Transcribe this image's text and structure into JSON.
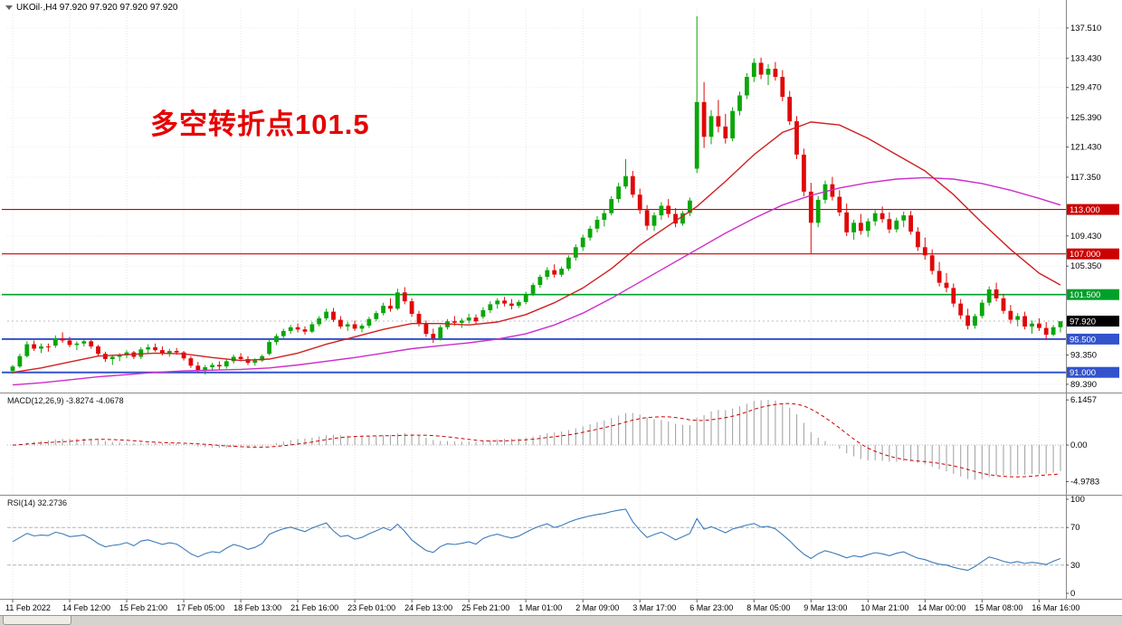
{
  "header": {
    "symbol_ohlc": "UKOil·,H4 97.920 97.920 97.920 97.920"
  },
  "annotation": {
    "text": "多空转折点101.5",
    "color": "#e60000"
  },
  "panels": {
    "macd_label": "MACD(12,26,9) -3.8274 -4.0678",
    "rsi_label": "RSI(14) 32.2736"
  },
  "colors": {
    "up": "#0aa60a",
    "down": "#e00707",
    "ma_fast": "#d02020",
    "ma_slow": "#cc2dcc",
    "macd_hist": "#a6a6a6",
    "macd_signal": "#cc0000",
    "rsi": "#3c7ab8"
  },
  "chart_data": {
    "type": "candlestick",
    "symbol": "UKOil",
    "timeframe": "H4",
    "current_price": 97.92,
    "current_price_label": "97.920",
    "price_ticks": [
      "137.510",
      "133.430",
      "129.470",
      "125.390",
      "121.430",
      "117.350",
      "109.430",
      "105.350",
      "93.350",
      "89.390"
    ],
    "horizontal_lines": [
      {
        "value": 113.0,
        "label": "113.000",
        "color": "#cc0000",
        "width": 1.2
      },
      {
        "value": 107.0,
        "label": "107.000",
        "color": "#cc0000",
        "width": 1.2
      },
      {
        "value": 101.5,
        "label": "101.500",
        "color": "#00a02c",
        "width": 1.6
      },
      {
        "value": 95.5,
        "label": "95.500",
        "color": "#3352cc",
        "width": 2
      },
      {
        "value": 91.0,
        "label": "91.000",
        "color": "#3352cc",
        "width": 2
      }
    ],
    "x_labels": [
      "11 Feb 2022",
      "14 Feb 12:00",
      "15 Feb 21:00",
      "17 Feb 05:00",
      "18 Feb 13:00",
      "21 Feb 16:00",
      "23 Feb 01:00",
      "24 Feb 13:00",
      "25 Feb 21:00",
      "1 Mar 01:00",
      "2 Mar 09:00",
      "3 Mar 17:00",
      "6 Mar 23:00",
      "8 Mar 05:00",
      "9 Mar 13:00",
      "10 Mar 21:00",
      "14 Mar 00:00",
      "15 Mar 08:00",
      "16 Mar 16:00"
    ],
    "candles_per_label": 8,
    "candles": [
      [
        91.2,
        92.0,
        90.8,
        91.8
      ],
      [
        91.8,
        93.5,
        91.6,
        93.2
      ],
      [
        93.2,
        95.2,
        93.0,
        94.8
      ],
      [
        94.8,
        95.3,
        93.9,
        94.2
      ],
      [
        94.2,
        94.9,
        93.6,
        94.5
      ],
      [
        94.5,
        94.9,
        93.8,
        94.4
      ],
      [
        94.6,
        96.0,
        94.3,
        95.6
      ],
      [
        95.6,
        96.4,
        95.0,
        95.3
      ],
      [
        95.3,
        95.8,
        94.4,
        94.7
      ],
      [
        94.7,
        95.2,
        94.0,
        94.9
      ],
      [
        94.9,
        95.5,
        94.5,
        95.2
      ],
      [
        95.2,
        95.4,
        94.2,
        94.5
      ],
      [
        94.5,
        94.7,
        93.2,
        93.5
      ],
      [
        93.5,
        93.8,
        92.4,
        92.8
      ],
      [
        92.8,
        93.4,
        92.0,
        93.1
      ],
      [
        93.1,
        93.6,
        92.5,
        93.3
      ],
      [
        93.3,
        94.0,
        92.9,
        93.7
      ],
      [
        93.7,
        93.9,
        92.8,
        93.1
      ],
      [
        93.1,
        94.4,
        92.8,
        94.1
      ],
      [
        94.1,
        94.8,
        93.6,
        94.4
      ],
      [
        94.4,
        94.9,
        93.8,
        94.0
      ],
      [
        94.0,
        94.5,
        93.3,
        93.6
      ],
      [
        93.6,
        94.2,
        93.1,
        93.9
      ],
      [
        93.9,
        94.3,
        93.4,
        93.7
      ],
      [
        93.7,
        93.9,
        92.6,
        92.9
      ],
      [
        92.9,
        93.2,
        91.6,
        91.9
      ],
      [
        91.9,
        92.4,
        90.9,
        91.2
      ],
      [
        91.2,
        92.0,
        90.7,
        91.7
      ],
      [
        91.7,
        92.3,
        91.2,
        92.0
      ],
      [
        92.0,
        92.5,
        91.4,
        91.8
      ],
      [
        91.8,
        92.8,
        91.5,
        92.5
      ],
      [
        92.5,
        93.4,
        92.2,
        93.1
      ],
      [
        93.1,
        93.6,
        92.5,
        92.8
      ],
      [
        92.8,
        93.2,
        92.0,
        92.3
      ],
      [
        92.3,
        92.9,
        91.9,
        92.6
      ],
      [
        92.6,
        93.4,
        92.4,
        93.2
      ],
      [
        93.5,
        95.4,
        93.3,
        95.1
      ],
      [
        95.1,
        96.2,
        94.7,
        95.9
      ],
      [
        95.9,
        96.9,
        95.5,
        96.6
      ],
      [
        96.6,
        97.4,
        96.2,
        97.1
      ],
      [
        97.1,
        97.6,
        96.4,
        96.8
      ],
      [
        96.8,
        97.2,
        96.1,
        96.5
      ],
      [
        96.5,
        97.8,
        96.3,
        97.5
      ],
      [
        97.5,
        98.6,
        97.2,
        98.3
      ],
      [
        98.3,
        99.6,
        98.0,
        99.2
      ],
      [
        99.2,
        99.7,
        97.8,
        98.1
      ],
      [
        98.1,
        98.6,
        96.9,
        97.2
      ],
      [
        97.2,
        97.8,
        96.6,
        97.5
      ],
      [
        97.5,
        98.0,
        96.6,
        96.9
      ],
      [
        96.9,
        97.6,
        96.4,
        97.3
      ],
      [
        97.3,
        98.5,
        97.0,
        98.2
      ],
      [
        98.2,
        99.3,
        97.9,
        99.0
      ],
      [
        99.0,
        100.4,
        98.7,
        100.0
      ],
      [
        100.0,
        101.0,
        99.2,
        99.6
      ],
      [
        99.6,
        102.3,
        99.4,
        101.8
      ],
      [
        101.8,
        102.5,
        100.2,
        100.6
      ],
      [
        100.6,
        101.0,
        98.5,
        98.9
      ],
      [
        98.9,
        99.3,
        97.2,
        97.6
      ],
      [
        97.6,
        98.0,
        95.8,
        96.2
      ],
      [
        96.2,
        96.9,
        95.0,
        95.6
      ],
      [
        95.6,
        97.4,
        95.3,
        97.1
      ],
      [
        97.1,
        98.2,
        96.8,
        97.9
      ],
      [
        97.9,
        98.6,
        97.3,
        97.7
      ],
      [
        97.7,
        98.3,
        97.0,
        98.0
      ],
      [
        98.0,
        98.9,
        97.6,
        98.4
      ],
      [
        98.4,
        98.8,
        97.5,
        97.9
      ],
      [
        98.5,
        99.8,
        98.2,
        99.4
      ],
      [
        99.4,
        100.6,
        99.0,
        100.2
      ],
      [
        100.2,
        101.0,
        99.6,
        100.7
      ],
      [
        100.7,
        101.2,
        99.9,
        100.3
      ],
      [
        100.3,
        100.9,
        99.5,
        100.0
      ],
      [
        100.0,
        100.8,
        99.7,
        100.5
      ],
      [
        100.5,
        101.9,
        100.2,
        101.6
      ],
      [
        101.6,
        103.1,
        101.3,
        102.8
      ],
      [
        102.8,
        104.2,
        102.4,
        103.9
      ],
      [
        103.9,
        105.2,
        103.5,
        104.8
      ],
      [
        104.8,
        105.6,
        103.8,
        104.2
      ],
      [
        104.2,
        105.3,
        103.9,
        105.0
      ],
      [
        105.0,
        106.8,
        104.7,
        106.5
      ],
      [
        106.5,
        108.3,
        106.1,
        107.9
      ],
      [
        107.9,
        109.6,
        107.4,
        109.2
      ],
      [
        109.2,
        110.8,
        108.8,
        110.4
      ],
      [
        110.4,
        112.1,
        109.9,
        111.6
      ],
      [
        111.6,
        113.0,
        110.7,
        112.5
      ],
      [
        112.5,
        114.8,
        112.2,
        114.4
      ],
      [
        114.4,
        116.6,
        113.9,
        116.1
      ],
      [
        116.1,
        119.8,
        115.8,
        117.5
      ],
      [
        117.5,
        118.2,
        114.6,
        115.0
      ],
      [
        115.0,
        115.8,
        112.4,
        112.9
      ],
      [
        112.9,
        113.6,
        110.2,
        110.8
      ],
      [
        110.8,
        112.6,
        110.1,
        112.2
      ],
      [
        112.2,
        114.0,
        111.6,
        113.5
      ],
      [
        113.5,
        114.4,
        111.9,
        112.4
      ],
      [
        112.4,
        113.2,
        110.6,
        111.1
      ],
      [
        111.1,
        112.8,
        110.8,
        112.5
      ],
      [
        112.5,
        114.6,
        112.1,
        114.2
      ],
      [
        118.5,
        139.1,
        117.9,
        127.5
      ],
      [
        127.5,
        130.2,
        121.3,
        122.8
      ],
      [
        122.8,
        126.4,
        121.8,
        125.6
      ],
      [
        125.6,
        127.8,
        123.4,
        124.2
      ],
      [
        124.2,
        125.9,
        121.9,
        122.6
      ],
      [
        122.6,
        126.8,
        122.2,
        126.3
      ],
      [
        126.3,
        128.9,
        125.7,
        128.4
      ],
      [
        128.4,
        131.4,
        127.9,
        130.9
      ],
      [
        130.9,
        133.4,
        130.2,
        132.8
      ],
      [
        132.8,
        133.5,
        130.6,
        131.2
      ],
      [
        131.2,
        132.6,
        129.8,
        132.0
      ],
      [
        132.0,
        132.9,
        130.4,
        130.9
      ],
      [
        130.9,
        131.8,
        127.6,
        128.2
      ],
      [
        128.2,
        129.0,
        124.4,
        124.9
      ],
      [
        124.9,
        125.6,
        119.8,
        120.4
      ],
      [
        120.4,
        121.2,
        114.8,
        115.4
      ],
      [
        115.4,
        116.6,
        107.0,
        111.2
      ],
      [
        111.2,
        114.8,
        110.6,
        114.3
      ],
      [
        114.3,
        116.9,
        113.8,
        116.4
      ],
      [
        116.4,
        117.4,
        114.2,
        114.7
      ],
      [
        114.7,
        115.6,
        112.1,
        112.6
      ],
      [
        112.6,
        113.8,
        109.4,
        109.9
      ],
      [
        109.9,
        111.6,
        108.9,
        111.2
      ],
      [
        111.2,
        112.4,
        109.6,
        110.1
      ],
      [
        110.1,
        111.8,
        109.3,
        111.4
      ],
      [
        111.4,
        112.9,
        110.8,
        112.5
      ],
      [
        112.5,
        113.4,
        111.2,
        111.7
      ],
      [
        111.7,
        112.6,
        109.8,
        110.3
      ],
      [
        110.3,
        111.9,
        109.9,
        111.5
      ],
      [
        111.5,
        112.7,
        110.6,
        112.2
      ],
      [
        112.2,
        112.8,
        109.6,
        110.0
      ],
      [
        110.0,
        110.6,
        107.4,
        107.9
      ],
      [
        107.9,
        109.2,
        106.2,
        106.8
      ],
      [
        106.8,
        107.6,
        104.2,
        104.7
      ],
      [
        104.7,
        105.9,
        102.6,
        103.1
      ],
      [
        103.1,
        104.4,
        101.8,
        102.4
      ],
      [
        102.4,
        103.0,
        99.8,
        100.3
      ],
      [
        100.3,
        100.9,
        98.2,
        98.7
      ],
      [
        98.7,
        99.6,
        96.8,
        97.3
      ],
      [
        97.3,
        98.9,
        96.9,
        98.6
      ],
      [
        98.6,
        100.8,
        98.3,
        100.4
      ],
      [
        100.4,
        102.6,
        100.0,
        102.2
      ],
      [
        102.2,
        103.1,
        100.6,
        101.0
      ],
      [
        101.0,
        101.6,
        98.9,
        99.3
      ],
      [
        99.3,
        100.1,
        97.6,
        98.1
      ],
      [
        98.1,
        99.0,
        97.2,
        98.6
      ],
      [
        98.6,
        99.2,
        96.8,
        97.2
      ],
      [
        97.2,
        98.0,
        96.2,
        97.6
      ],
      [
        97.6,
        98.3,
        96.6,
        97.0
      ],
      [
        97.0,
        97.8,
        95.4,
        96.1
      ],
      [
        96.1,
        97.4,
        95.9,
        97.1
      ],
      [
        97.1,
        97.9,
        96.4,
        97.9
      ]
    ],
    "ma_fast": {
      "color": "#d02020",
      "sample_step": 4,
      "values": [
        91.0,
        91.6,
        92.4,
        93.2,
        93.4,
        93.6,
        93.5,
        93.0,
        92.6,
        92.8,
        93.6,
        94.8,
        95.8,
        96.8,
        97.6,
        97.6,
        97.4,
        97.8,
        98.8,
        100.4,
        102.4,
        105.0,
        108.2,
        110.8,
        113.4,
        116.8,
        120.4,
        123.4,
        124.8,
        124.4,
        122.6,
        120.4,
        118.2,
        115.0,
        111.2,
        107.6,
        104.4,
        102.8
      ]
    },
    "ma_slow": {
      "color": "#cc2dcc",
      "sample_step": 4,
      "values": [
        89.3,
        89.6,
        90.0,
        90.4,
        90.7,
        91.0,
        91.2,
        91.3,
        91.4,
        91.6,
        92.0,
        92.5,
        93.0,
        93.6,
        94.2,
        94.6,
        95.0,
        95.5,
        96.2,
        97.4,
        99.0,
        101.0,
        103.2,
        105.4,
        107.6,
        109.8,
        111.8,
        113.6,
        114.9,
        115.9,
        116.6,
        117.1,
        117.3,
        117.1,
        116.5,
        115.6,
        114.5,
        113.6
      ]
    },
    "macd": {
      "params": "12,26,9",
      "value": -3.8274,
      "signal_value": -4.0678,
      "axis_ticks": [
        "6.1457",
        "0.00",
        "-4.9783"
      ]
    },
    "rsi": {
      "period": 14,
      "value": 32.2736,
      "axis_ticks": [
        "100",
        "70",
        "30",
        "0"
      ],
      "guide_levels": [
        70,
        30
      ]
    }
  }
}
